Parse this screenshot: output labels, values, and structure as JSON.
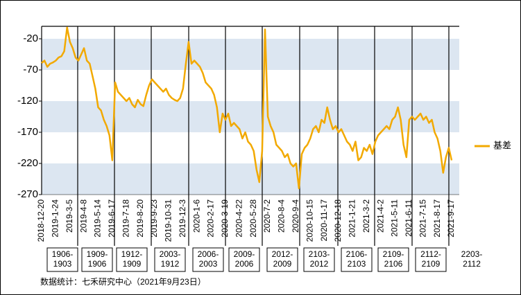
{
  "chart_data": {
    "type": "line",
    "categories": [
      "2018-12-20",
      null,
      null,
      null,
      null,
      "2019-1-24",
      null,
      null,
      null,
      null,
      "2019-3-5",
      null,
      null,
      null,
      null,
      "2019-4-8",
      null,
      null,
      null,
      null,
      "2019-5-14",
      null,
      null,
      null,
      null,
      "2019-6-17",
      null,
      null,
      null,
      null,
      "2019-7-18",
      null,
      null,
      null,
      null,
      "2019-8-20",
      null,
      null,
      null,
      null,
      "2019-9-23",
      null,
      null,
      null,
      null,
      "2019-10-31",
      null,
      null,
      null,
      null,
      "2019-12-3",
      null,
      null,
      null,
      null,
      "2020-1-6",
      null,
      null,
      null,
      null,
      "2020-2-17",
      null,
      null,
      null,
      null,
      "2020-3-19",
      null,
      null,
      null,
      null,
      "2020-4-22",
      null,
      null,
      null,
      null,
      "2020-5-28",
      null,
      null,
      null,
      null,
      "2020-7-2",
      null,
      null,
      null,
      null,
      "2020-8-4",
      null,
      null,
      null,
      null,
      "2020-9-4",
      null,
      null,
      null,
      null,
      "2020-10-15",
      null,
      null,
      null,
      null,
      "2020-11-17",
      null,
      null,
      null,
      null,
      "2020-12-18",
      null,
      null,
      null,
      null,
      "2021-1-21",
      null,
      null,
      null,
      null,
      "2021-3-2",
      null,
      null,
      null,
      null,
      "2021-4-2",
      null,
      null,
      null,
      null,
      "2021-5-11",
      null,
      null,
      null,
      null,
      "2021-6-11",
      null,
      null,
      null,
      null,
      "2021-7-15",
      null,
      null,
      null,
      null,
      "2021-8-17",
      null,
      null,
      null,
      null,
      "2021-9-17"
    ],
    "series": [
      {
        "name": "基差",
        "color": "#f2a900",
        "values": [
          -59,
          -55,
          -65,
          -60,
          -58,
          -55,
          -50,
          -48,
          -40,
          -2,
          -25,
          -35,
          -50,
          -55,
          -45,
          -35,
          -55,
          -60,
          -80,
          -100,
          -130,
          -135,
          -150,
          -160,
          -175,
          -215,
          -90,
          -105,
          -110,
          -115,
          -120,
          -115,
          -125,
          -130,
          -118,
          -125,
          -128,
          -110,
          -95,
          -85,
          -90,
          -95,
          -100,
          -105,
          -100,
          -110,
          -115,
          -118,
          -120,
          -115,
          -100,
          -60,
          -25,
          -60,
          -55,
          -60,
          -65,
          -75,
          -90,
          -95,
          -100,
          -110,
          -130,
          -170,
          -140,
          -150,
          -140,
          -160,
          -155,
          -160,
          -165,
          -180,
          -170,
          -185,
          -190,
          -200,
          -230,
          -250,
          -200,
          -5,
          -145,
          -160,
          -170,
          -190,
          -195,
          -200,
          -210,
          -205,
          -220,
          -225,
          -220,
          -260,
          -205,
          -195,
          -190,
          -180,
          -165,
          -160,
          -170,
          -150,
          -155,
          -130,
          -150,
          -165,
          -160,
          -170,
          -165,
          -175,
          -185,
          -190,
          -200,
          -185,
          -215,
          -210,
          -195,
          -200,
          -190,
          -205,
          -185,
          -175,
          -170,
          -165,
          -160,
          -165,
          -150,
          -145,
          -130,
          -150,
          -190,
          -210,
          -150,
          -145,
          -150,
          -145,
          -140,
          -150,
          -145,
          -155,
          -150,
          -170,
          -180,
          -200,
          -235,
          -210,
          -195,
          -215
        ]
      }
    ],
    "ylim": [
      -270,
      0
    ],
    "yticks": [
      -20,
      -70,
      -120,
      -170,
      -220,
      -270
    ],
    "bands": true,
    "band_color": "#dce6f1",
    "legend": "right",
    "annotations": [
      [
        "1906-",
        "1903"
      ],
      [
        "1909-",
        "1906"
      ],
      [
        "1912-",
        "1909"
      ],
      [
        "2003-",
        "1912"
      ],
      [
        "2006-",
        "2003"
      ],
      [
        "2009-",
        "2006"
      ],
      [
        "2012-",
        "2009"
      ],
      [
        "2103-",
        "2012"
      ],
      [
        "2106-",
        "2103"
      ],
      [
        "2109-",
        "2106"
      ],
      [
        "2112-",
        "2109"
      ],
      [
        "2203-",
        "2112"
      ]
    ],
    "source": "数据统计：七禾研究中心（2021年9月23日）"
  }
}
